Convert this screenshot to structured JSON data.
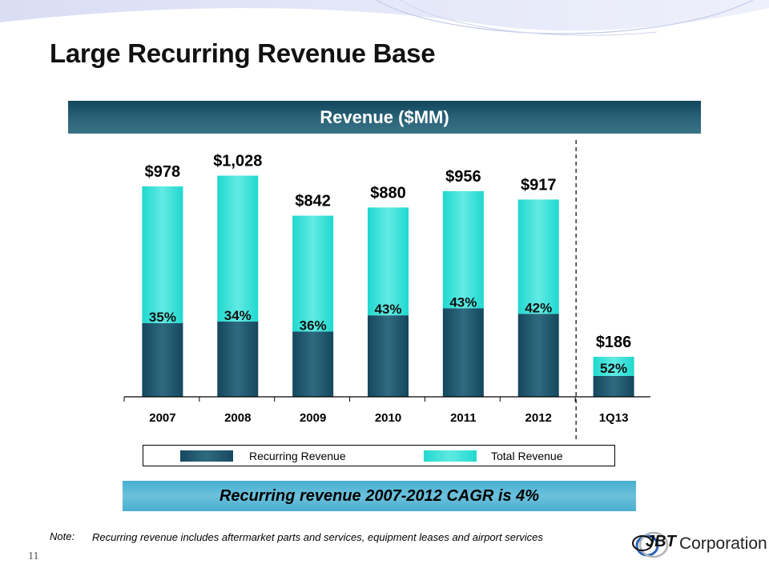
{
  "slide": {
    "title": "Large Recurring Revenue Base",
    "header_band": "Revenue ($MM)",
    "cagr_callout": "Recurring revenue 2007-2012 CAGR is 4%",
    "note_label": "Note:",
    "note_text": "Recurring revenue includes aftermarket parts and services, equipment leases and airport services",
    "page_number": "11",
    "logo": {
      "brand": "JBT",
      "text": "Corporation"
    }
  },
  "colors": {
    "recurring": "#1f5468",
    "total": "#35e0d8",
    "header_band": "#1d5569",
    "cagr_band": "#5ab8d6"
  },
  "chart_data": {
    "type": "bar",
    "stacked": true,
    "title": "Revenue ($MM)",
    "xlabel": "",
    "ylabel": "",
    "categories": [
      "2007",
      "2008",
      "2009",
      "2010",
      "2011",
      "2012",
      "1Q13"
    ],
    "series": [
      {
        "name": "Recurring Revenue",
        "percent_of_total": [
          35,
          34,
          36,
          43,
          43,
          42,
          52
        ]
      },
      {
        "name": "Total Revenue",
        "values": [
          978,
          1028,
          842,
          880,
          956,
          917,
          186
        ]
      }
    ],
    "total_labels": [
      "$978",
      "$1,028",
      "$842",
      "$880",
      "$956",
      "$917",
      "$186"
    ],
    "percent_labels": [
      "35%",
      "34%",
      "36%",
      "43%",
      "43%",
      "42%",
      "52%"
    ],
    "ylim": [
      0,
      1100
    ],
    "grid": false,
    "y_axis_visible": false,
    "separator_before": "1Q13",
    "legend": {
      "placement": "bottom",
      "entries": [
        "Recurring Revenue",
        "Total Revenue"
      ]
    }
  }
}
